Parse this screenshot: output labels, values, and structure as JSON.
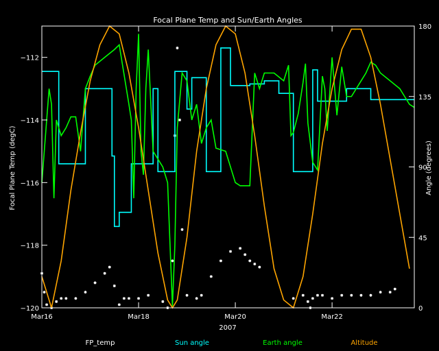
{
  "chart_data": {
    "type": "line",
    "title": "Focal Plane Temp and Sun/Earth Angles",
    "xlabel": "2007",
    "ylabel_left": "Focal Plane Temp (degC)",
    "ylabel_right": "Angle (degrees)",
    "xlim_days": [
      16,
      23.7
    ],
    "ylim_left": [
      -120,
      -111
    ],
    "ylim_right": [
      0,
      180
    ],
    "x_ticks": [
      {
        "day": 16,
        "label": "Mar16"
      },
      {
        "day": 18,
        "label": "Mar18"
      },
      {
        "day": 20,
        "label": "Mar20"
      },
      {
        "day": 22,
        "label": "Mar22"
      }
    ],
    "y_ticks_left": [
      {
        "value": -120,
        "label": "−120"
      },
      {
        "value": -118,
        "label": "−118"
      },
      {
        "value": -116,
        "label": "−116"
      },
      {
        "value": -114,
        "label": "−114"
      },
      {
        "value": -112,
        "label": "−112"
      }
    ],
    "y_ticks_right": [
      {
        "value": 0,
        "label": "0"
      },
      {
        "value": 45,
        "label": "45"
      },
      {
        "value": 90,
        "label": "90"
      },
      {
        "value": 135,
        "label": "135"
      },
      {
        "value": 180,
        "label": "180"
      }
    ],
    "legend": [
      {
        "label": "FP_temp",
        "color": "#ffffff"
      },
      {
        "label": "Sun angle",
        "color": "#00ffff"
      },
      {
        "label": "Earth angle",
        "color": "#00ff00"
      },
      {
        "label": "Altitude",
        "color": "#ffa500"
      }
    ],
    "legend_position": "bottom",
    "series": [
      {
        "name": "FP_temp",
        "axis": "left",
        "style": "points",
        "color": "#ffffff",
        "x": [
          16.0,
          16.05,
          16.1,
          16.2,
          16.3,
          16.4,
          16.5,
          16.7,
          16.9,
          17.1,
          17.3,
          17.4,
          17.5,
          17.6,
          17.7,
          17.8,
          18.0,
          18.2,
          18.5,
          18.6,
          18.7,
          18.75,
          18.8,
          18.85,
          18.9,
          19.0,
          19.2,
          19.3,
          19.5,
          19.7,
          19.9,
          20.1,
          20.2,
          20.3,
          20.4,
          20.5,
          21.2,
          21.4,
          21.5,
          21.55,
          21.6,
          21.7,
          21.8,
          22.0,
          22.2,
          22.4,
          22.6,
          22.8,
          23.0,
          23.2,
          23.3
        ],
        "y": [
          -118.9,
          -119.5,
          -119.9,
          -120.0,
          -119.8,
          -119.7,
          -119.7,
          -119.7,
          -119.5,
          -119.2,
          -118.9,
          -118.7,
          -119.3,
          -119.9,
          -119.7,
          -119.7,
          -119.7,
          -119.6,
          -119.8,
          -120.0,
          -118.5,
          -114.5,
          -111.7,
          -114.0,
          -117.5,
          -119.6,
          -119.7,
          -119.6,
          -119.0,
          -118.5,
          -118.2,
          -118.1,
          -118.3,
          -118.5,
          -118.6,
          -118.7,
          -119.7,
          -119.6,
          -119.8,
          -120.0,
          -119.7,
          -119.6,
          -119.6,
          -119.7,
          -119.6,
          -119.6,
          -119.6,
          -119.6,
          -119.5,
          -119.5,
          -119.4
        ]
      },
      {
        "name": "Sun angle",
        "axis": "right",
        "style": "step",
        "color": "#00ffff",
        "x": [
          16.0,
          16.3,
          16.35,
          16.7,
          16.9,
          17.4,
          17.45,
          17.5,
          17.55,
          17.6,
          17.8,
          17.85,
          18.2,
          18.3,
          18.4,
          18.65,
          18.75,
          18.85,
          19.0,
          19.1,
          19.3,
          19.4,
          19.5,
          19.7,
          19.9,
          20.0,
          20.3,
          20.4,
          20.6,
          20.7,
          20.9,
          21.0,
          21.2,
          21.25,
          21.4,
          21.5,
          21.6,
          21.7,
          22.0,
          22.3,
          22.4,
          22.6,
          22.8,
          23.0,
          23.7
        ],
        "y": [
          151,
          151,
          92,
          92,
          140,
          140,
          97,
          52,
          52,
          61,
          61,
          92,
          92,
          140,
          87,
          87,
          151,
          151,
          127,
          147,
          147,
          87,
          87,
          166,
          142,
          142,
          143,
          143,
          145,
          145,
          137,
          137,
          87,
          87,
          87,
          87,
          152,
          132,
          132,
          140,
          140,
          140,
          133,
          133,
          133
        ]
      },
      {
        "name": "Earth angle",
        "axis": "right",
        "style": "line",
        "color": "#00ff00",
        "x": [
          16.0,
          16.1,
          16.15,
          16.2,
          16.25,
          16.3,
          16.4,
          16.5,
          16.6,
          16.7,
          16.8,
          16.9,
          17.0,
          17.1,
          17.3,
          17.5,
          17.6,
          17.8,
          17.85,
          17.9,
          17.95,
          18.0,
          18.05,
          18.1,
          18.15,
          18.2,
          18.3,
          18.4,
          18.5,
          18.6,
          18.7,
          18.75,
          18.8,
          18.9,
          19.0,
          19.1,
          19.2,
          19.3,
          19.4,
          19.5,
          19.6,
          19.8,
          20.0,
          20.1,
          20.2,
          20.3,
          20.4,
          20.5,
          20.6,
          20.8,
          21.0,
          21.1,
          21.15,
          21.2,
          21.3,
          21.4,
          21.45,
          21.5,
          21.6,
          21.7,
          21.8,
          21.85,
          21.9,
          22.0,
          22.1,
          22.2,
          22.3,
          22.4,
          22.5,
          22.6,
          22.7,
          22.8,
          22.9,
          23.0,
          23.2,
          23.4,
          23.5,
          23.6,
          23.7
        ],
        "y": [
          80,
          120,
          140,
          130,
          70,
          120,
          110,
          115,
          122,
          122,
          100,
          140,
          148,
          155,
          160,
          165,
          168,
          130,
          120,
          70,
          140,
          175,
          100,
          85,
          140,
          165,
          100,
          95,
          90,
          80,
          1,
          40,
          115,
          150,
          145,
          120,
          130,
          105,
          115,
          120,
          102,
          100,
          80,
          78,
          78,
          78,
          150,
          140,
          150,
          150,
          145,
          155,
          110,
          112,
          124,
          144,
          156,
          118,
          93,
          88,
          148,
          140,
          113,
          160,
          123,
          154,
          135,
          135,
          140,
          145,
          150,
          157,
          155,
          150,
          145,
          140,
          135,
          130,
          128
        ]
      },
      {
        "name": "Altitude",
        "axis": "right",
        "style": "line",
        "color": "#ffa500",
        "x": [
          16.0,
          16.2,
          16.4,
          16.6,
          16.8,
          17.0,
          17.2,
          17.4,
          17.6,
          17.8,
          18.0,
          18.2,
          18.4,
          18.6,
          18.7,
          18.8,
          19.0,
          19.2,
          19.4,
          19.6,
          19.8,
          20.0,
          20.2,
          20.4,
          20.6,
          20.8,
          21.0,
          21.2,
          21.4,
          21.6,
          21.8,
          22.0,
          22.2,
          22.4,
          22.6,
          22.8,
          23.0,
          23.2,
          23.4,
          23.6
        ],
        "y": [
          20,
          0,
          30,
          75,
          112,
          145,
          168,
          180,
          175,
          150,
          115,
          75,
          35,
          5,
          0,
          5,
          45,
          100,
          140,
          168,
          180,
          175,
          150,
          110,
          65,
          25,
          5,
          0,
          20,
          60,
          105,
          140,
          165,
          178,
          178,
          160,
          130,
          95,
          60,
          25
        ]
      }
    ]
  }
}
